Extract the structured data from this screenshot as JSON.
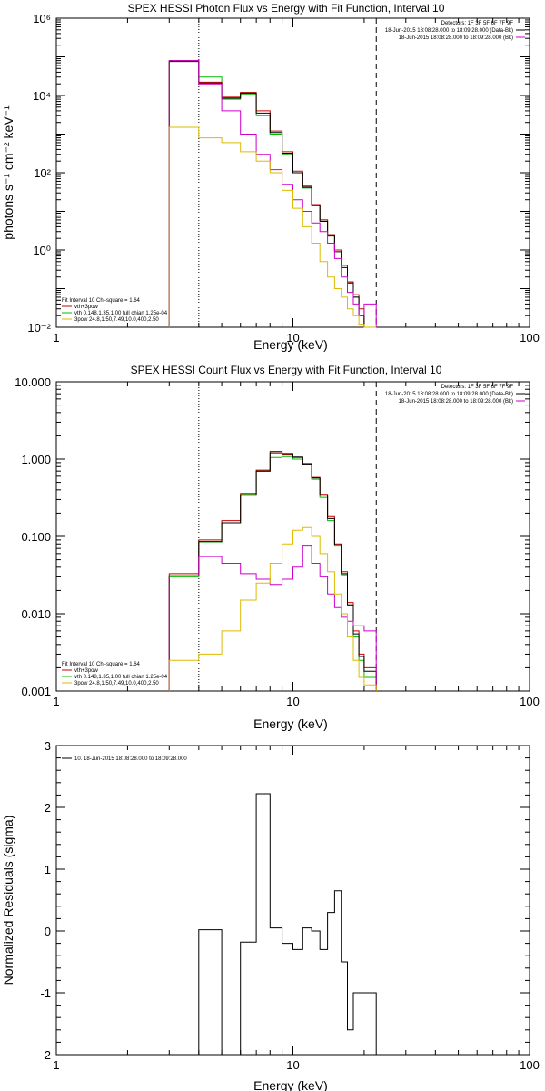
{
  "chart_data": [
    {
      "type": "line",
      "title": "SPEX HESSI Photon Flux vs Energy with Fit Function, Interval 10",
      "xlabel": "Energy (keV)",
      "ylabel": "photons s⁻¹ cm⁻² keV⁻¹",
      "xscale": "log",
      "yscale": "log",
      "xlim": [
        1,
        100
      ],
      "ylim": [
        0.01,
        1000000
      ],
      "x_ticks": [
        1,
        10,
        100
      ],
      "x_tick_labels": [
        "1",
        "10",
        "100"
      ],
      "y_ticks": [
        0.01,
        1,
        100,
        10000,
        1000000
      ],
      "y_tick_labels": [
        "10⁻²",
        "10⁰",
        "10²",
        "10⁴",
        "10⁶"
      ],
      "legend_right": [
        "Detectors: 1F 3F 5F 6F 7F 9F",
        "18-Jun-2015 18:08:28.000 to 18:09:28.000 (Data-Bk)",
        "18-Jun-2015 18:08:28.000 to 18:09:28.000 (Bk)"
      ],
      "legend_right_colors": [
        "#000000",
        "#000000",
        "#cc00cc"
      ],
      "legend_left": [
        "Fit Interval 10   Chi-square = 1.64",
        "vth+3pow",
        "vth 0.148,1.35,1.00  full chian 1.25e-04",
        "3pow 24.8,1.50,7.49,10.0,400,2.50"
      ],
      "legend_left_colors": [
        "",
        "#cc0000",
        "#00bb00",
        "#ddbb00"
      ],
      "vlines": [
        {
          "x": 4.0,
          "style": "dotted"
        },
        {
          "x": 22.5,
          "style": "dashed"
        }
      ],
      "bin_edges": [
        3.0,
        4.0,
        5.0,
        6.0,
        7.0,
        8.0,
        9.0,
        10.0,
        11.0,
        12.0,
        13.0,
        14.0,
        15.0,
        16.0,
        17.0,
        18.0,
        19.0,
        20.0,
        22.5
      ],
      "series": [
        {
          "color": "#00bb00",
          "values": [
            80000,
            30000,
            8000,
            11000,
            3000,
            1000,
            300,
            100,
            40,
            15,
            6,
            2.5,
            1.0,
            0.4,
            0.15,
            0.06,
            0.02,
            0.008
          ]
        },
        {
          "color": "#cc0000",
          "values": [
            80000,
            22000,
            9000,
            12000,
            4000,
            1200,
            350,
            110,
            45,
            15,
            6,
            2.5,
            1.0,
            0.4,
            0.15,
            0.07,
            0.03,
            0.01
          ]
        },
        {
          "color": "#000000",
          "values": [
            76000,
            21000,
            8500,
            11500,
            3500,
            1100,
            320,
            100,
            42,
            14,
            5.5,
            2.3,
            0.9,
            0.35,
            0.14,
            0.06,
            0.02,
            0.009
          ]
        },
        {
          "color": "#cc00cc",
          "values": [
            80000,
            20000,
            4000,
            1000,
            300,
            120,
            50,
            20,
            10,
            5,
            3,
            1.5,
            0.6,
            0.2,
            0.08,
            0.04,
            0.02,
            0.04
          ]
        },
        {
          "color": "#ddbb00",
          "values": [
            1500,
            800,
            600,
            350,
            200,
            100,
            35,
            12,
            4,
            1.5,
            0.5,
            0.2,
            0.1,
            0.06,
            0.03,
            0.02,
            0.012,
            0.006
          ]
        }
      ]
    },
    {
      "type": "line",
      "title": "SPEX HESSI Count Flux vs Energy with Fit Function, Interval 10",
      "xlabel": "Energy (keV)",
      "ylabel": "",
      "xscale": "log",
      "yscale": "log",
      "xlim": [
        1,
        100
      ],
      "ylim": [
        0.001,
        10
      ],
      "x_ticks": [
        1,
        10,
        100
      ],
      "x_tick_labels": [
        "1",
        "10",
        "100"
      ],
      "y_ticks": [
        0.001,
        0.01,
        0.1,
        1,
        10
      ],
      "y_tick_labels": [
        "0.001",
        "0.010",
        "0.100",
        "1.000",
        "10.000"
      ],
      "legend_right": [
        "Detectors: 1F 3F 5F 6F 7F 9F",
        "18-Jun-2015 18:08:28.000 to 18:09:28.000 (Data-Bk)",
        "18-Jun-2015 18:08:28.000 to 18:09:28.000 (Bk)"
      ],
      "legend_right_colors": [
        "#000000",
        "#000000",
        "#cc00cc"
      ],
      "legend_left": [
        "Fit Interval 10   Chi-square = 1.64",
        "vth+3pow",
        "vth 0.148,1.35,1.00  full chian 1.25e-04",
        "3pow 24.8,1.50,7.49,10.0,400,2.50"
      ],
      "legend_left_colors": [
        "",
        "#cc0000",
        "#00bb00",
        "#ddbb00"
      ],
      "vlines": [
        {
          "x": 4.0,
          "style": "dotted"
        },
        {
          "x": 22.5,
          "style": "dashed"
        }
      ],
      "bin_edges": [
        3.0,
        4.0,
        5.0,
        6.0,
        7.0,
        8.0,
        9.0,
        10.0,
        11.0,
        12.0,
        13.0,
        14.0,
        15.0,
        16.0,
        17.0,
        18.0,
        19.0,
        20.0,
        22.5
      ],
      "series": [
        {
          "color": "#00bb00",
          "values": [
            0.03,
            0.085,
            0.15,
            0.35,
            0.7,
            1.05,
            1.08,
            1.0,
            0.85,
            0.55,
            0.32,
            0.16,
            0.075,
            0.032,
            0.013,
            0.005,
            0.0025,
            0.0015
          ]
        },
        {
          "color": "#cc0000",
          "values": [
            0.033,
            0.09,
            0.16,
            0.36,
            0.72,
            1.2,
            1.15,
            1.05,
            0.88,
            0.58,
            0.35,
            0.18,
            0.08,
            0.035,
            0.014,
            0.006,
            0.003,
            0.002
          ]
        },
        {
          "color": "#000000",
          "values": [
            0.031,
            0.086,
            0.15,
            0.34,
            0.7,
            1.25,
            1.18,
            1.06,
            0.86,
            0.57,
            0.34,
            0.17,
            0.078,
            0.033,
            0.013,
            0.0055,
            0.0028,
            0.0018
          ]
        },
        {
          "color": "#cc00cc",
          "values": [
            0.031,
            0.055,
            0.045,
            0.033,
            0.028,
            0.024,
            0.028,
            0.04,
            0.075,
            0.045,
            0.03,
            0.018,
            0.012,
            0.009,
            0.008,
            0.007,
            0.007,
            0.006
          ]
        },
        {
          "color": "#ddbb00",
          "values": [
            0.0025,
            0.003,
            0.006,
            0.015,
            0.025,
            0.045,
            0.08,
            0.12,
            0.13,
            0.1,
            0.06,
            0.035,
            0.018,
            0.01,
            0.005,
            0.0025,
            0.0015,
            0.0012
          ]
        }
      ]
    },
    {
      "type": "line",
      "title": "",
      "xlabel": "Energy (keV)",
      "ylabel": "Normalized Residuals (sigma)",
      "xscale": "log",
      "yscale": "linear",
      "xlim": [
        1,
        100
      ],
      "ylim": [
        -2,
        3
      ],
      "x_ticks": [
        1,
        10,
        100
      ],
      "x_tick_labels": [
        "1",
        "10",
        "100"
      ],
      "y_ticks": [
        -2,
        -1,
        0,
        1,
        2,
        3
      ],
      "y_tick_labels": [
        "-2",
        "-1",
        "0",
        "1",
        "2",
        "3"
      ],
      "legend_left": [
        "10. 18-Jun-2015 18:08:28.000 to 18:09:28.000"
      ],
      "bin_edges": [
        4.0,
        5.0,
        6.0,
        7.0,
        8.0,
        9.0,
        10.0,
        11.0,
        12.0,
        13.0,
        14.0,
        15.0,
        16.0,
        17.0,
        18.0,
        19.0,
        20.0,
        22.5
      ],
      "series": [
        {
          "color": "#000000",
          "values": [
            0.02,
            -2.0,
            -0.18,
            2.22,
            0.05,
            -0.2,
            -0.3,
            0.05,
            0.0,
            -0.3,
            0.3,
            0.65,
            -0.5,
            -1.6,
            -1.0,
            -1.0,
            -1.0
          ]
        }
      ]
    }
  ]
}
